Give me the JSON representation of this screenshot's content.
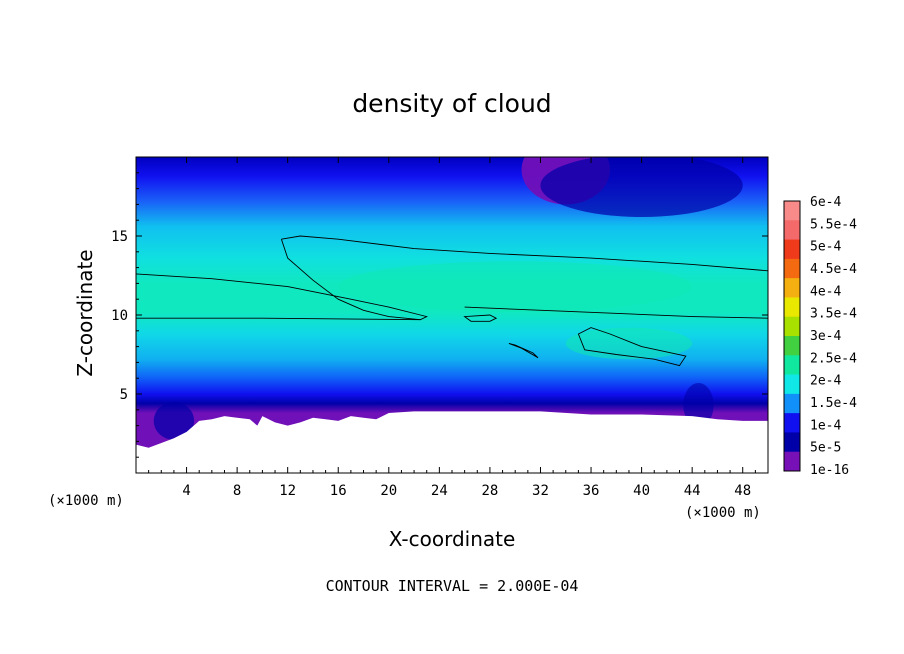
{
  "chart_data": {
    "type": "heatmap",
    "title": "density of cloud",
    "xlabel": "X-coordinate",
    "ylabel": "Z-coordinate",
    "x_unit": "(×1000 m)",
    "z_unit": "(×1000 m)",
    "xlim": [
      0,
      50
    ],
    "ylim": [
      0,
      20
    ],
    "x_ticks": [
      4,
      8,
      12,
      16,
      20,
      24,
      28,
      32,
      36,
      40,
      44,
      48
    ],
    "y_ticks": [
      5,
      10,
      15
    ],
    "footer": "CONTOUR INTERVAL = 2.000E-04",
    "contour_interval": 0.0002,
    "colorbar": {
      "labels": [
        "6e-4",
        "5.5e-4",
        "5e-4",
        "4.5e-4",
        "4e-4",
        "3.5e-4",
        "3e-4",
        "2.5e-4",
        "2e-4",
        "1.5e-4",
        "1e-4",
        "5e-5",
        "1e-16"
      ],
      "levels": [
        0.0006,
        0.00055,
        0.0005,
        0.00045,
        0.0004,
        0.00035,
        0.0003,
        0.00025,
        0.0002,
        0.00015,
        0.0001,
        5e-05,
        1e-16
      ],
      "colors": [
        "#f88a8a",
        "#f46a6a",
        "#f03a1c",
        "#f46a10",
        "#f4b010",
        "#e8e800",
        "#a8e000",
        "#40d040",
        "#10e8a0",
        "#10e8e8",
        "#1090f8",
        "#1010f0",
        "#0000a8",
        "#7810b8"
      ]
    },
    "surface_height_km": [
      [
        0,
        1.8
      ],
      [
        1,
        1.6
      ],
      [
        2,
        1.9
      ],
      [
        3,
        2.2
      ],
      [
        4,
        2.6
      ],
      [
        5,
        3.3
      ],
      [
        6,
        3.4
      ],
      [
        7,
        3.6
      ],
      [
        8,
        3.5
      ],
      [
        9,
        3.4
      ],
      [
        9.6,
        3.0
      ],
      [
        10,
        3.6
      ],
      [
        11,
        3.2
      ],
      [
        12,
        3.0
      ],
      [
        13,
        3.2
      ],
      [
        14,
        3.5
      ],
      [
        15,
        3.4
      ],
      [
        16,
        3.3
      ],
      [
        17,
        3.6
      ],
      [
        18,
        3.5
      ],
      [
        19,
        3.4
      ],
      [
        20,
        3.8
      ],
      [
        22,
        3.9
      ],
      [
        24,
        3.9
      ],
      [
        28,
        3.9
      ],
      [
        32,
        3.9
      ],
      [
        36,
        3.7
      ],
      [
        40,
        3.7
      ],
      [
        44,
        3.6
      ],
      [
        46,
        3.4
      ],
      [
        48,
        3.3
      ],
      [
        50,
        3.3
      ]
    ],
    "contours_2e-4": [
      {
        "points": [
          [
            11.5,
            14.8
          ],
          [
            13,
            15.0
          ],
          [
            16,
            14.8
          ],
          [
            22,
            14.2
          ],
          [
            28,
            13.9
          ],
          [
            36,
            13.6
          ],
          [
            44,
            13.2
          ],
          [
            50,
            12.8
          ]
        ]
      },
      {
        "points": [
          [
            0,
            12.6
          ],
          [
            6,
            12.3
          ],
          [
            12,
            11.8
          ],
          [
            17,
            11.0
          ],
          [
            20,
            10.5
          ],
          [
            22.5,
            10.0
          ],
          [
            23,
            9.9
          ],
          [
            22.5,
            9.7
          ],
          [
            20,
            9.9
          ],
          [
            18,
            10.3
          ],
          [
            16,
            11.0
          ],
          [
            14,
            12.2
          ],
          [
            12,
            13.6
          ],
          [
            11.5,
            14.8
          ]
        ]
      },
      {
        "points": [
          [
            0,
            9.8
          ],
          [
            10,
            9.8
          ],
          [
            22.5,
            9.7
          ]
        ]
      },
      {
        "points": [
          [
            26,
            10.5
          ],
          [
            35,
            10.2
          ],
          [
            44,
            9.9
          ],
          [
            50,
            9.8
          ]
        ]
      },
      {
        "points": [
          [
            26,
            9.9
          ],
          [
            26.5,
            9.6
          ],
          [
            28,
            9.6
          ],
          [
            28.5,
            9.8
          ],
          [
            28,
            10.0
          ],
          [
            26,
            9.9
          ]
        ],
        "closed": true
      },
      {
        "points": [
          [
            29.5,
            8.2
          ],
          [
            30.5,
            7.9
          ],
          [
            31.8,
            7.3
          ],
          [
            31.4,
            7.6
          ],
          [
            30,
            8.1
          ],
          [
            29.5,
            8.2
          ]
        ],
        "closed": true
      },
      {
        "points": [
          [
            35,
            8.8
          ],
          [
            36,
            9.2
          ],
          [
            37.5,
            8.8
          ],
          [
            40,
            8.0
          ],
          [
            43.5,
            7.4
          ],
          [
            43,
            6.8
          ],
          [
            41,
            7.2
          ],
          [
            38,
            7.5
          ],
          [
            35.5,
            7.8
          ],
          [
            35,
            8.8
          ]
        ],
        "closed": true
      }
    ]
  }
}
